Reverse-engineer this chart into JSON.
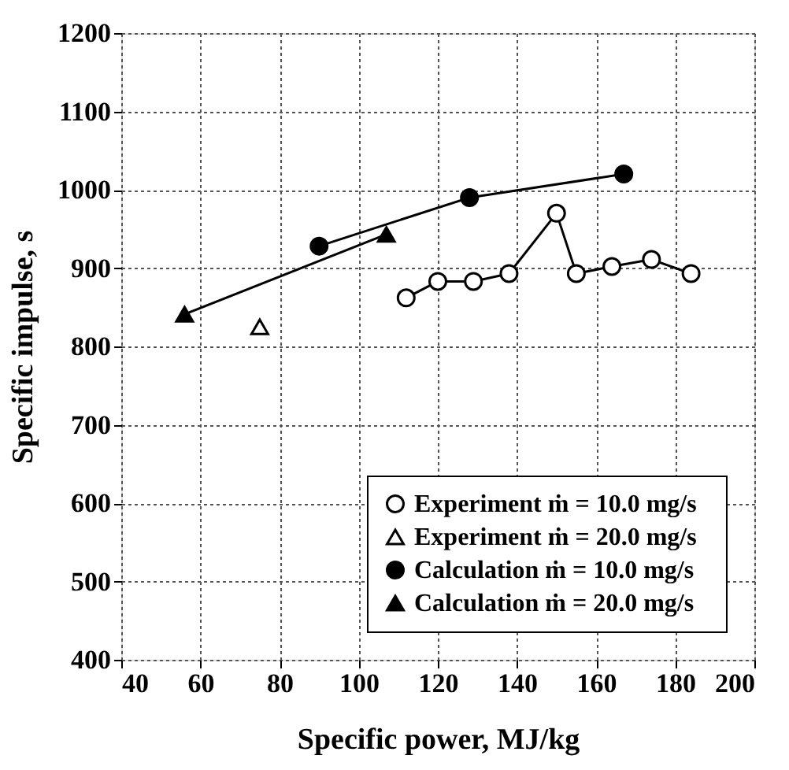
{
  "chart_data": {
    "type": "line",
    "xlabel": "Specific power,   MJ/kg",
    "ylabel": "Specific impulse,   s",
    "xlim": [
      40,
      200
    ],
    "xticks": [
      40,
      60,
      80,
      100,
      120,
      140,
      160,
      180,
      200
    ],
    "ylim": [
      400,
      1200
    ],
    "yticks": [
      400,
      500,
      600,
      700,
      800,
      900,
      1000,
      1100,
      1200
    ],
    "grid": true,
    "legend": "bottom right",
    "line_style": "solid",
    "series": [
      {
        "name": "Experiment   ṁ = 10.0 mg/s",
        "color": "#000000",
        "marker": "circle",
        "colors": [
          "#ffffff",
          "#ffffff",
          "#ffffff",
          "#ffffff",
          "#ffffff",
          "#ffffff",
          "#ffffff",
          "#ffffff",
          "#ffffff"
        ],
        "x": [
          112,
          120,
          129,
          138,
          150,
          155,
          164,
          174,
          184
        ],
        "values": [
          862,
          883,
          883,
          893,
          970,
          893,
          902,
          911,
          893
        ]
      },
      {
        "name": "Experiment   ṁ = 20.0 mg/s",
        "color": "#000000",
        "marker": "triangle",
        "colors": [
          "#ffffff"
        ],
        "x": [
          75
        ],
        "values": [
          825
        ]
      },
      {
        "name": "Calculation   ṁ = 10.0 mg/s",
        "color": "#000000",
        "marker": "circle",
        "colors": [
          "#000000",
          "#000000",
          "#000000"
        ],
        "x": [
          90,
          128,
          167
        ],
        "values": [
          928,
          990,
          1020
        ]
      },
      {
        "name": "Calculation   ṁ = 20.0 mg/s",
        "color": "#000000",
        "marker": "triangle",
        "colors": [
          "#000000",
          "#000000"
        ],
        "x": [
          56,
          107
        ],
        "values": [
          841,
          943
        ]
      }
    ]
  }
}
